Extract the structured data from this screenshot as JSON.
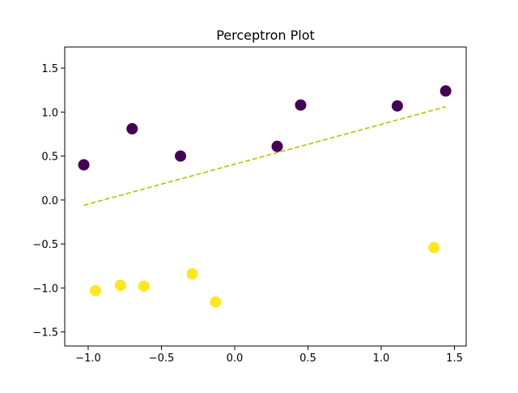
{
  "chart_data": {
    "type": "scatter",
    "title": "Perceptron Plot",
    "xlabel": "",
    "ylabel": "",
    "xlim": [
      -1.16,
      1.58
    ],
    "ylim": [
      -1.66,
      1.74
    ],
    "grid": false,
    "x_ticks": [
      -1.0,
      -0.5,
      0.0,
      0.5,
      1.0,
      1.5
    ],
    "x_tick_labels": [
      "−1.0",
      "−0.5",
      "0.0",
      "0.5",
      "1.0",
      "1.5"
    ],
    "y_ticks": [
      -1.5,
      -1.0,
      -0.5,
      0.0,
      0.5,
      1.0,
      1.5
    ],
    "y_tick_labels": [
      "−1.5",
      "−1.0",
      "−0.5",
      "0.0",
      "0.5",
      "1.0",
      "1.5"
    ],
    "series": [
      {
        "color": "#440154",
        "points": [
          {
            "x": -1.03,
            "y": 0.4
          },
          {
            "x": -0.7,
            "y": 0.81
          },
          {
            "x": -0.37,
            "y": 0.5
          },
          {
            "x": 0.29,
            "y": 0.61
          },
          {
            "x": 0.45,
            "y": 1.08
          },
          {
            "x": 1.11,
            "y": 1.07
          },
          {
            "x": 1.44,
            "y": 1.24
          }
        ]
      },
      {
        "color": "#fde725",
        "points": [
          {
            "x": -0.95,
            "y": -1.03
          },
          {
            "x": -0.78,
            "y": -0.97
          },
          {
            "x": -0.62,
            "y": -0.98
          },
          {
            "x": -0.29,
            "y": -0.84
          },
          {
            "x": -0.13,
            "y": -1.16
          },
          {
            "x": 1.36,
            "y": -0.54
          }
        ]
      }
    ],
    "decision_line": {
      "x": [
        -1.03,
        1.44
      ],
      "y": [
        -0.06,
        1.06
      ],
      "color": "#bfbf00",
      "style": "dashed"
    }
  }
}
